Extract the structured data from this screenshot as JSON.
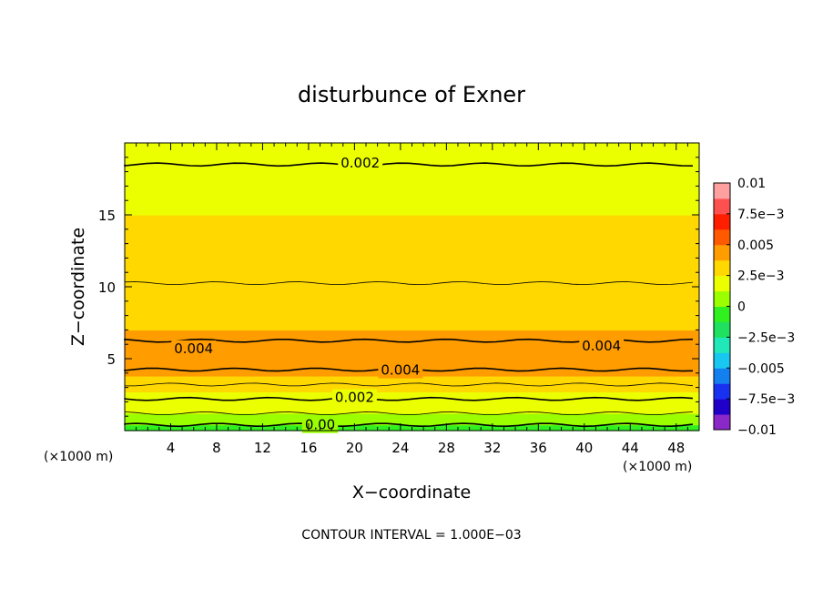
{
  "chart_data": {
    "type": "heatmap",
    "title": "disturbunce of Exner",
    "xlabel": "X−coordinate",
    "ylabel": "Z−coordinate",
    "x_unit": "(×1000 m)",
    "y_unit": "(×1000 m)",
    "xlim": [
      0,
      50
    ],
    "ylim": [
      0,
      20
    ],
    "x_ticks": [
      4,
      8,
      12,
      16,
      20,
      24,
      28,
      32,
      36,
      40,
      44,
      48
    ],
    "y_ticks": [
      5,
      10,
      15
    ],
    "z_range": [
      -0.01,
      0.01
    ],
    "colorbar_labels": [
      "0.01",
      "7.5e−3",
      "0.005",
      "2.5e−3",
      "0",
      "−2.5e−3",
      "−0.005",
      "−7.5e−3",
      "−0.01"
    ],
    "colorbar_colors": [
      "#8a28c8",
      "#2000c8",
      "#1830f0",
      "#1480f0",
      "#18c8f0",
      "#20e8b8",
      "#20e060",
      "#30f020",
      "#9cff00",
      "#ecff00",
      "#ffd800",
      "#ff9c00",
      "#ff5a00",
      "#ff1e00",
      "#ff5050",
      "#ffa0a0"
    ],
    "profile": {
      "z": [
        0.0,
        0.4,
        0.7,
        1.2,
        1.7,
        2.2,
        2.7,
        3.2,
        3.8,
        4.5,
        5.2,
        6.0,
        7.0,
        8.0,
        9.5,
        11.0,
        13.0,
        15.0,
        17.0,
        18.5,
        20.0
      ],
      "value": [
        -0.0002,
        0.0,
        0.0005,
        0.001,
        0.0015,
        0.002,
        0.0025,
        0.003,
        0.0035,
        0.0043,
        0.0044,
        0.0041,
        0.0037,
        0.0034,
        0.0031,
        0.0029,
        0.0026,
        0.0024,
        0.0022,
        0.002,
        0.0019
      ]
    },
    "contour_labels": [
      {
        "text": "0.002",
        "x": 20.5,
        "z": 18.6
      },
      {
        "text": "0.004",
        "x": 6.0,
        "z": 5.7
      },
      {
        "text": "0.004",
        "x": 41.5,
        "z": 5.9
      },
      {
        "text": "0.004",
        "x": 24.0,
        "z": 4.2
      },
      {
        "text": "0.002",
        "x": 20.0,
        "z": 2.3
      },
      {
        "text": "0.00",
        "x": 17.0,
        "z": 0.4
      }
    ],
    "grid": false,
    "legend": "right colorbar"
  },
  "footer": "CONTOUR INTERVAL = 1.000E−03"
}
